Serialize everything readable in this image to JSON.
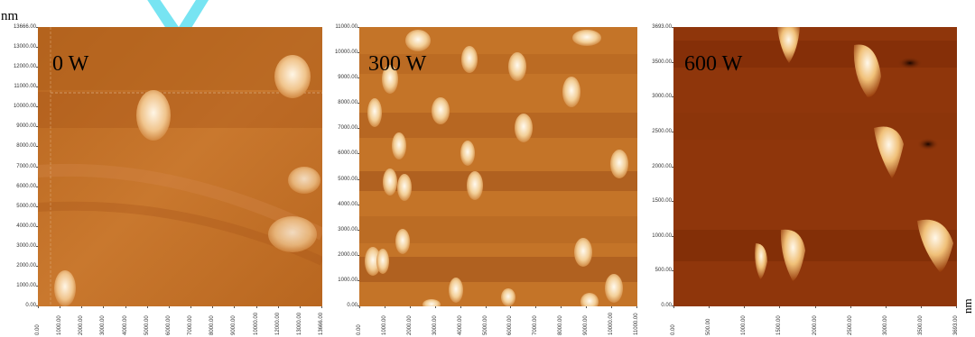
{
  "unit_label": "nm",
  "colors": {
    "afm_dark": "#7a2e05",
    "afm_mid": "#b8641f",
    "afm_light": "#e8b57a",
    "peak": "#fff6e6",
    "watermark": "#5fdff0"
  },
  "panels": [
    {
      "label": "0 W",
      "y_ticks": [
        "13666.00",
        "13000.00",
        "12000.00",
        "11000.00",
        "10000.00",
        "9000.00",
        "8000.00",
        "7000.00",
        "6000.00",
        "5000.00",
        "4000.00",
        "3000.00",
        "2000.00",
        "1000.00",
        "0.00"
      ],
      "x_ticks": [
        "0.00",
        "1000.00",
        "2000.00",
        "3000.00",
        "4000.00",
        "5000.00",
        "6000.00",
        "7000.00",
        "8000.00",
        "9000.00",
        "10000.00",
        "12000.00",
        "13000.00",
        "13666.00"
      ]
    },
    {
      "label": "300 W",
      "y_ticks": [
        "11000.00",
        "10000.00",
        "9000.00",
        "8000.00",
        "7000.00",
        "6000.00",
        "5000.00",
        "4000.00",
        "3000.00",
        "2000.00",
        "1000.00",
        "0.00"
      ],
      "x_ticks": [
        "0.00",
        "1000.00",
        "2000.00",
        "3000.00",
        "4000.00",
        "5000.00",
        "6000.00",
        "7000.00",
        "8000.00",
        "9000.00",
        "10000.00",
        "11000.00"
      ]
    },
    {
      "label": "600 W",
      "y_ticks": [
        "3693.00",
        "3500.00",
        "3000.00",
        "2500.00",
        "2000.00",
        "1500.00",
        "1000.00",
        "500.00",
        "0.00"
      ],
      "x_ticks": [
        "0.00",
        "500.00",
        "1000.00",
        "1500.00",
        "2000.00",
        "2500.00",
        "3000.00",
        "3500.00",
        "3693.00"
      ]
    }
  ]
}
